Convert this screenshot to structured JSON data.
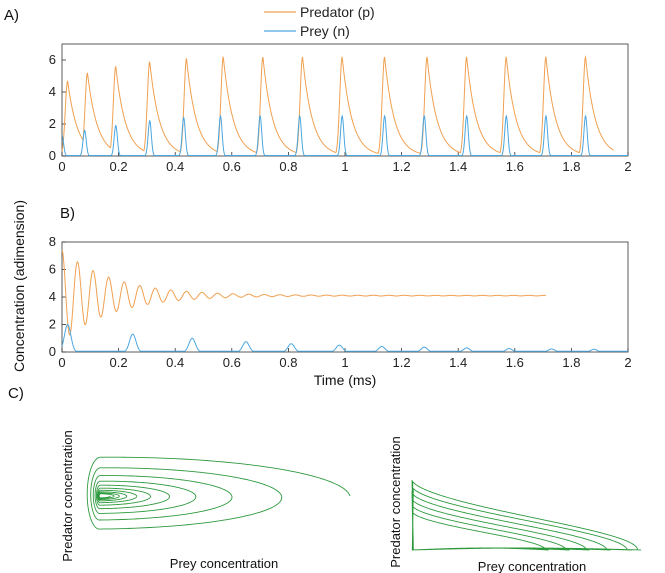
{
  "panels": {
    "a": "A)",
    "b": "B)",
    "c": "C)"
  },
  "legend": {
    "predator": "Predator (p)",
    "prey": "Prey (n)"
  },
  "shared_ylabel": "Concentration (adimension)",
  "colors": {
    "predator": "#f0a050",
    "prey": "#4aa6e0",
    "phase": "#2e9a3e",
    "axis": "#333333"
  },
  "chart_data": [
    {
      "type": "line",
      "panel": "A)",
      "xlim": [
        0,
        2
      ],
      "ylim": [
        0,
        7
      ],
      "xticks": [
        "0",
        "0.2",
        "0.4",
        "0.6",
        "0.8",
        "1",
        "1.2",
        "1.4",
        "1.6",
        "1.8",
        "2"
      ],
      "yticks": [
        "0",
        "2",
        "4",
        "6"
      ],
      "series": [
        {
          "name": "Predator (p)",
          "peak_times": [
            0.02,
            0.09,
            0.19,
            0.31,
            0.44,
            0.57,
            0.71,
            0.85,
            0.99,
            1.14,
            1.29,
            1.43,
            1.57,
            1.71,
            1.85
          ],
          "peaks": [
            4.7,
            5.2,
            5.6,
            5.9,
            6.1,
            6.2,
            6.2,
            6.2,
            6.2,
            6.2,
            6.2,
            6.2,
            6.2,
            6.2,
            6.2
          ],
          "end": 1.95
        },
        {
          "name": "Prey (n)",
          "peak_times": [
            0.0,
            0.08,
            0.19,
            0.31,
            0.43,
            0.56,
            0.7,
            0.84,
            0.99,
            1.14,
            1.28,
            1.43,
            1.57,
            1.71,
            1.85
          ],
          "peaks": [
            1.3,
            1.6,
            1.9,
            2.2,
            2.4,
            2.5,
            2.5,
            2.5,
            2.5,
            2.5,
            2.5,
            2.5,
            2.5,
            2.5,
            2.5
          ]
        }
      ]
    },
    {
      "type": "line",
      "panel": "B)",
      "xlabel": "Time (ms)",
      "xlim": [
        0,
        2
      ],
      "ylim": [
        0,
        8
      ],
      "xticks": [
        "0",
        "0.2",
        "0.4",
        "0.6",
        "0.8",
        "1",
        "1.2",
        "1.4",
        "1.6",
        "1.8",
        "2"
      ],
      "yticks": [
        "0",
        "2",
        "4",
        "6",
        "8"
      ],
      "series": [
        {
          "name": "Predator (p)",
          "start": 7.4,
          "equilibrium": 4.1,
          "first_min": 1.2,
          "period": 0.055,
          "end": 1.71
        },
        {
          "name": "Prey (n)",
          "peak_times": [
            0.02,
            0.25,
            0.46,
            0.65,
            0.81,
            0.98,
            1.13,
            1.28,
            1.43,
            1.58,
            1.73,
            1.88
          ],
          "peaks": [
            2.0,
            1.3,
            1.0,
            0.75,
            0.6,
            0.5,
            0.4,
            0.35,
            0.3,
            0.25,
            0.22,
            0.2
          ]
        }
      ]
    },
    {
      "type": "line",
      "panel": "C) left",
      "xlabel": "Prey concentration",
      "ylabel": "Predator concentration",
      "description_free": true,
      "loops": 10,
      "decay": 0.9
    },
    {
      "type": "line",
      "panel": "C) right",
      "xlabel": "Prey concentration",
      "ylabel": "Predator concentration",
      "loops": 6
    }
  ]
}
